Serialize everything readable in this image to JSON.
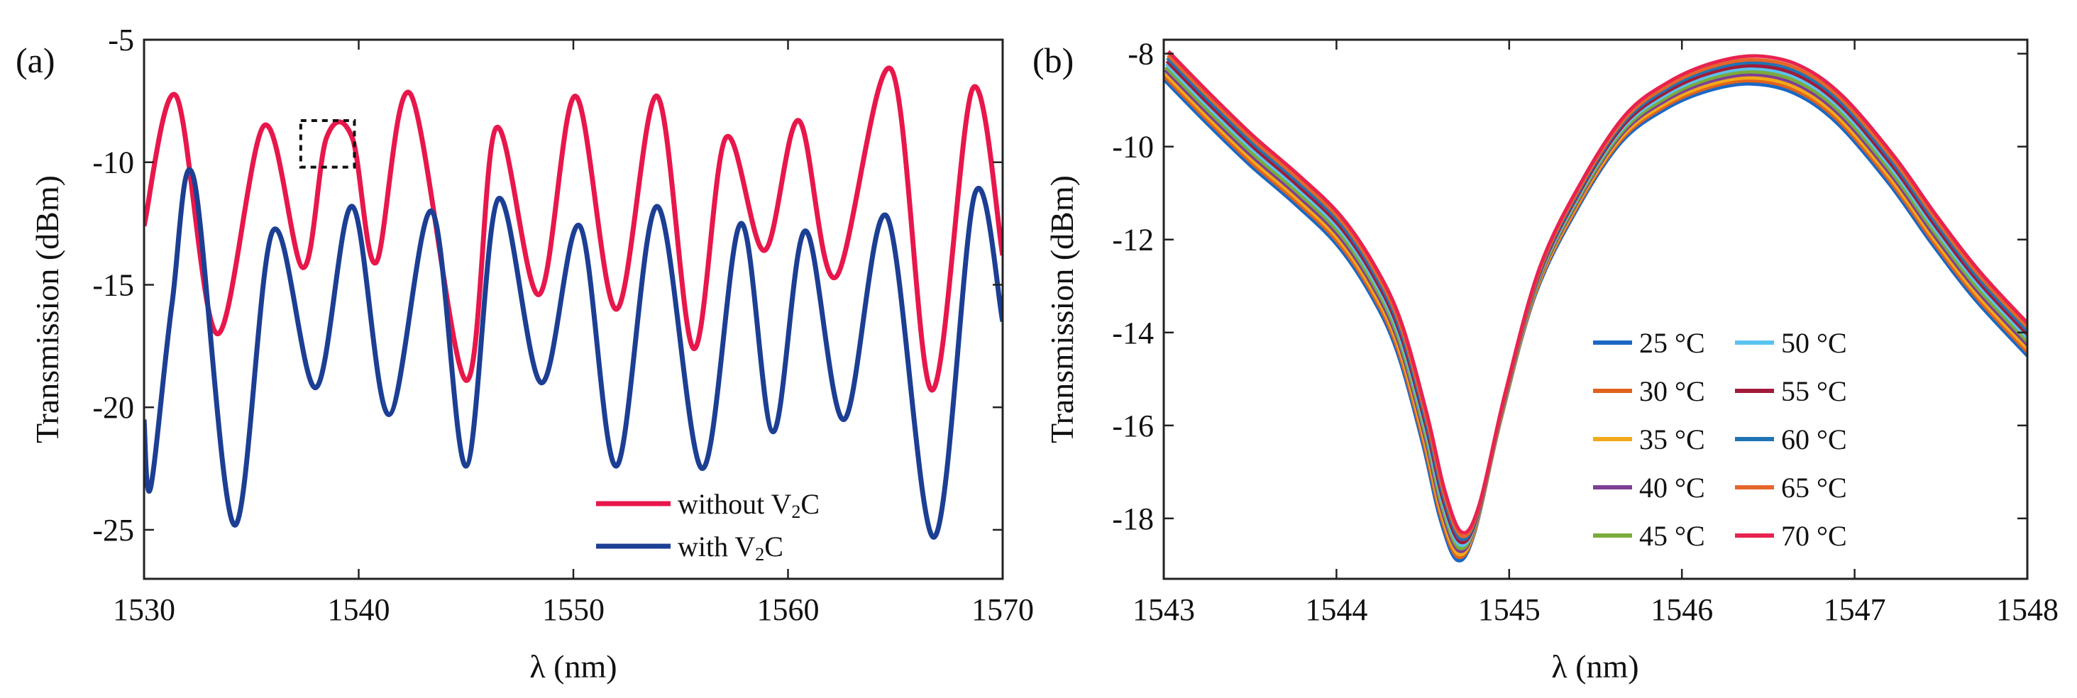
{
  "chart_data": [
    {
      "panel_label": "(a)",
      "type": "line",
      "xlabel": "λ (nm)",
      "ylabel": "Transmission (dBm)",
      "xlim": [
        1530,
        1570
      ],
      "ylim": [
        -27,
        -5
      ],
      "xticks": [
        1530,
        1540,
        1550,
        1560,
        1570
      ],
      "yticks": [
        -5,
        -10,
        -15,
        -20,
        -25
      ],
      "xtick_labels": [
        "1530",
        "1540",
        "1550",
        "1560",
        "1570"
      ],
      "ytick_labels": [
        "-5",
        "-10",
        "-15",
        "-20",
        "-25"
      ],
      "grid": false,
      "legend_position": "bottom-right",
      "annotation": {
        "type": "dashed-box",
        "x": [
          1537.3,
          1539.8
        ],
        "y": [
          -10.2,
          -8.3
        ]
      },
      "series": [
        {
          "name": "without V₂C",
          "legend_label": "without V",
          "legend_subscript": "2",
          "legend_suffix": "C",
          "color": "#e8174b",
          "points": [
            [
              1530.0,
              -12.6
            ],
            [
              1531.5,
              -7.3
            ],
            [
              1533.4,
              -17.0
            ],
            [
              1535.6,
              -8.5
            ],
            [
              1537.4,
              -14.3
            ],
            [
              1538.5,
              -9.0
            ],
            [
              1539.7,
              -9.0
            ],
            [
              1540.8,
              -14.1
            ],
            [
              1542.4,
              -7.2
            ],
            [
              1545.0,
              -18.9
            ],
            [
              1546.4,
              -8.6
            ],
            [
              1548.4,
              -15.4
            ],
            [
              1550.1,
              -7.3
            ],
            [
              1552.0,
              -16.0
            ],
            [
              1553.9,
              -7.3
            ],
            [
              1555.6,
              -17.6
            ],
            [
              1557.1,
              -9.0
            ],
            [
              1558.9,
              -13.6
            ],
            [
              1560.5,
              -8.3
            ],
            [
              1562.2,
              -14.7
            ],
            [
              1564.8,
              -6.2
            ],
            [
              1566.7,
              -19.3
            ],
            [
              1568.6,
              -7.0
            ],
            [
              1570.0,
              -13.8
            ]
          ]
        },
        {
          "name": "with V₂C",
          "legend_label": "with V",
          "legend_subscript": "2",
          "legend_suffix": "C",
          "color": "#1c3f94",
          "points": [
            [
              1530.0,
              -20.5
            ],
            [
              1530.3,
              -23.3
            ],
            [
              1531.3,
              -15.8
            ],
            [
              1532.3,
              -10.6
            ],
            [
              1534.2,
              -24.8
            ],
            [
              1536.0,
              -12.8
            ],
            [
              1538.0,
              -19.2
            ],
            [
              1539.7,
              -11.8
            ],
            [
              1541.4,
              -20.3
            ],
            [
              1543.4,
              -12.0
            ],
            [
              1545.0,
              -22.4
            ],
            [
              1546.5,
              -11.5
            ],
            [
              1548.5,
              -19.0
            ],
            [
              1550.3,
              -12.6
            ],
            [
              1552.0,
              -22.4
            ],
            [
              1553.9,
              -11.8
            ],
            [
              1556.0,
              -22.5
            ],
            [
              1557.8,
              -12.5
            ],
            [
              1559.3,
              -21.0
            ],
            [
              1560.8,
              -12.8
            ],
            [
              1562.6,
              -20.5
            ],
            [
              1564.6,
              -12.2
            ],
            [
              1566.8,
              -25.3
            ],
            [
              1568.7,
              -11.3
            ],
            [
              1570.0,
              -16.5
            ]
          ]
        }
      ]
    },
    {
      "panel_label": "(b)",
      "type": "line",
      "xlabel": "λ (nm)",
      "ylabel": "Transmission (dBm)",
      "xlim": [
        1543,
        1548
      ],
      "ylim": [
        -19.3,
        -7.7
      ],
      "xticks": [
        1543,
        1544,
        1545,
        1546,
        1547,
        1548
      ],
      "yticks": [
        -8,
        -10,
        -12,
        -14,
        -16,
        -18
      ],
      "xtick_labels": [
        "1543",
        "1544",
        "1545",
        "1546",
        "1547",
        "1548"
      ],
      "ytick_labels": [
        "-8",
        "-10",
        "-12",
        "-14",
        "-16",
        "-18"
      ],
      "grid": false,
      "legend_position": "bottom-right",
      "legend_columns": 2,
      "series": [
        {
          "name": "25 °C",
          "color": "#1a68c4",
          "offset": [
            0.0,
            -0.6
          ]
        },
        {
          "name": "30 °C",
          "color": "#e0621d",
          "offset": [
            0.003,
            -0.53
          ]
        },
        {
          "name": "35 °C",
          "color": "#f2a81a",
          "offset": [
            0.006,
            -0.47
          ]
        },
        {
          "name": "40 °C",
          "color": "#7e3f95",
          "offset": [
            0.009,
            -0.4
          ]
        },
        {
          "name": "45 °C",
          "color": "#7aac3a",
          "offset": [
            0.012,
            -0.34
          ]
        },
        {
          "name": "50 °C",
          "color": "#5bc3ef",
          "offset": [
            0.015,
            -0.27
          ]
        },
        {
          "name": "55 °C",
          "color": "#a11c3a",
          "offset": [
            0.018,
            -0.21
          ]
        },
        {
          "name": "60 °C",
          "color": "#1f74b5",
          "offset": [
            0.021,
            -0.14
          ]
        },
        {
          "name": "65 °C",
          "color": "#e4662a",
          "offset": [
            0.024,
            -0.08
          ]
        },
        {
          "name": "70 °C",
          "color": "#e8234f",
          "offset": [
            0.027,
            0.0
          ]
        }
      ],
      "base_curve": [
        [
          1543.0,
          -7.95
        ],
        [
          1543.25,
          -8.9
        ],
        [
          1543.5,
          -9.8
        ],
        [
          1543.75,
          -10.6
        ],
        [
          1544.0,
          -11.5
        ],
        [
          1544.2,
          -12.6
        ],
        [
          1544.35,
          -13.8
        ],
        [
          1544.5,
          -15.8
        ],
        [
          1544.6,
          -17.4
        ],
        [
          1544.7,
          -18.3
        ],
        [
          1544.8,
          -17.7
        ],
        [
          1544.95,
          -15.3
        ],
        [
          1545.15,
          -12.6
        ],
        [
          1545.4,
          -10.7
        ],
        [
          1545.65,
          -9.3
        ],
        [
          1545.9,
          -8.6
        ],
        [
          1546.15,
          -8.2
        ],
        [
          1546.4,
          -8.05
        ],
        [
          1546.65,
          -8.25
        ],
        [
          1546.9,
          -8.9
        ],
        [
          1547.2,
          -10.2
        ],
        [
          1547.45,
          -11.5
        ],
        [
          1547.7,
          -12.7
        ],
        [
          1548.0,
          -13.9
        ]
      ]
    }
  ]
}
